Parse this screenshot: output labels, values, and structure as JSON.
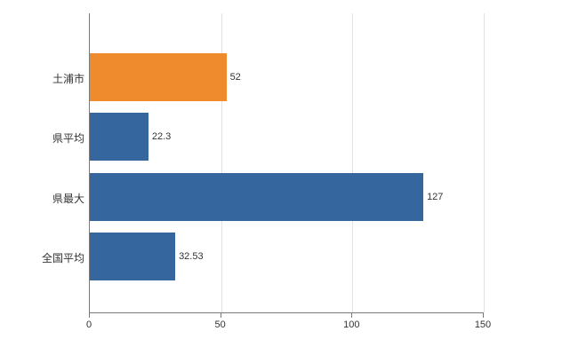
{
  "chart_data": {
    "type": "bar",
    "orientation": "horizontal",
    "title": "",
    "xlabel": "",
    "ylabel": "",
    "categories": [
      "土浦市",
      "県平均",
      "県最大",
      "全国平均"
    ],
    "values": [
      52,
      22.3,
      127,
      32.53
    ],
    "value_labels": [
      "52",
      "22.3",
      "127",
      "32.53"
    ],
    "bar_colors": [
      "#ef8b2c",
      "#35679e",
      "#35679e",
      "#35679e"
    ],
    "xlim": [
      0,
      150
    ],
    "x_ticks": [
      0,
      50,
      100,
      150
    ],
    "x_tick_labels": [
      "0",
      "50",
      "100",
      "150"
    ],
    "grid": true,
    "legend": false
  },
  "colors": {
    "bar_highlight": "#ef8b2c",
    "bar_default": "#35679e",
    "gridline": "#e3e3e3",
    "axis": "#7a7a7a",
    "text": "#333333"
  }
}
